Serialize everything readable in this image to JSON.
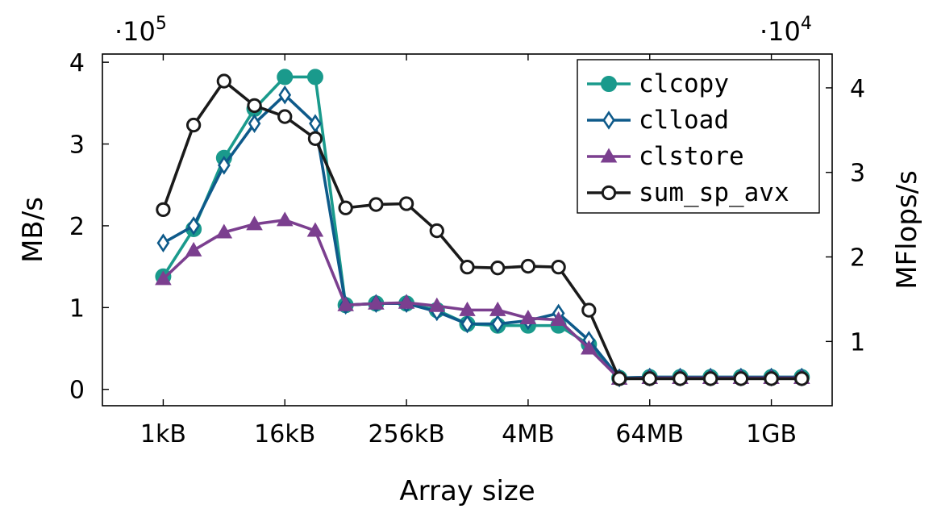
{
  "chart_data": {
    "type": "line",
    "xlabel": "Array size",
    "ylabel": "MB/s",
    "y2label": "MFlops/s",
    "y_scale_label": "·10",
    "y_scale_exp": "5",
    "y2_scale_label": "·10",
    "y2_scale_exp": "4",
    "x_ticks": [
      {
        "x": 10,
        "label": "1kB"
      },
      {
        "x": 14,
        "label": "16kB"
      },
      {
        "x": 18,
        "label": "256kB"
      },
      {
        "x": 22,
        "label": "4MB"
      },
      {
        "x": 26,
        "label": "64MB"
      },
      {
        "x": 30,
        "label": "1GB"
      }
    ],
    "xlim": [
      8,
      32
    ],
    "ylim": [
      -0.2,
      4.1
    ],
    "y_ticks": [
      0,
      1,
      2,
      3,
      4
    ],
    "y2lim": [
      2400,
      44000
    ],
    "y2_ticks": [
      {
        "v": 10000,
        "label": "1"
      },
      {
        "v": 20000,
        "label": "2"
      },
      {
        "v": 30000,
        "label": "3"
      },
      {
        "v": 40000,
        "label": "4"
      }
    ],
    "legend_position": "top-right",
    "series": [
      {
        "name": "clcopy",
        "axis": "left",
        "color": "#1a9a8c",
        "marker": "circle-filled",
        "points": [
          [
            10,
            1.38
          ],
          [
            11,
            1.96
          ],
          [
            12,
            2.83
          ],
          [
            13,
            3.43
          ],
          [
            14,
            3.82
          ],
          [
            15,
            3.82
          ],
          [
            16,
            1.03
          ],
          [
            17,
            1.05
          ],
          [
            18,
            1.05
          ],
          [
            19,
            0.97
          ],
          [
            20,
            0.8
          ],
          [
            21,
            0.78
          ],
          [
            22,
            0.78
          ],
          [
            23,
            0.78
          ],
          [
            24,
            0.55
          ],
          [
            25,
            0.14
          ],
          [
            26,
            0.15
          ],
          [
            27,
            0.15
          ],
          [
            28,
            0.15
          ],
          [
            29,
            0.15
          ],
          [
            30,
            0.15
          ],
          [
            31,
            0.15
          ]
        ]
      },
      {
        "name": "clload",
        "axis": "left",
        "color": "#0e5a8a",
        "marker": "diamond",
        "points": [
          [
            10,
            1.79
          ],
          [
            11,
            2.0
          ],
          [
            12,
            2.74
          ],
          [
            13,
            3.25
          ],
          [
            14,
            3.6
          ],
          [
            15,
            3.25
          ],
          [
            16,
            1.03
          ],
          [
            17,
            1.05
          ],
          [
            18,
            1.05
          ],
          [
            19,
            0.95
          ],
          [
            20,
            0.8
          ],
          [
            21,
            0.8
          ],
          [
            22,
            0.84
          ],
          [
            23,
            0.93
          ],
          [
            24,
            0.6
          ],
          [
            25,
            0.14
          ],
          [
            26,
            0.15
          ],
          [
            27,
            0.15
          ],
          [
            28,
            0.15
          ],
          [
            29,
            0.15
          ],
          [
            30,
            0.15
          ],
          [
            31,
            0.15
          ]
        ]
      },
      {
        "name": "clstore",
        "axis": "left",
        "color": "#7b3f8f",
        "marker": "triangle",
        "points": [
          [
            10,
            1.35
          ],
          [
            11,
            1.7
          ],
          [
            12,
            1.92
          ],
          [
            13,
            2.02
          ],
          [
            14,
            2.07
          ],
          [
            15,
            1.94
          ],
          [
            16,
            1.03
          ],
          [
            17,
            1.05
          ],
          [
            18,
            1.06
          ],
          [
            19,
            1.02
          ],
          [
            20,
            0.97
          ],
          [
            21,
            0.97
          ],
          [
            22,
            0.87
          ],
          [
            23,
            0.85
          ],
          [
            24,
            0.5
          ],
          [
            25,
            0.13
          ],
          [
            26,
            0.14
          ],
          [
            27,
            0.14
          ],
          [
            28,
            0.14
          ],
          [
            29,
            0.14
          ],
          [
            30,
            0.14
          ],
          [
            31,
            0.14
          ]
        ]
      },
      {
        "name": "sum_sp_avx",
        "axis": "right",
        "color": "#1a1a1a",
        "marker": "circle-open",
        "points": [
          [
            10,
            25600
          ],
          [
            11,
            35600
          ],
          [
            12,
            40800
          ],
          [
            13,
            37900
          ],
          [
            14,
            36600
          ],
          [
            15,
            34000
          ],
          [
            16,
            25800
          ],
          [
            17,
            26200
          ],
          [
            18,
            26300
          ],
          [
            19,
            23100
          ],
          [
            20,
            18800
          ],
          [
            21,
            18700
          ],
          [
            22,
            18900
          ],
          [
            23,
            18800
          ],
          [
            24,
            13700
          ],
          [
            25,
            5600
          ],
          [
            26,
            5600
          ],
          [
            27,
            5600
          ],
          [
            28,
            5600
          ],
          [
            29,
            5600
          ],
          [
            30,
            5600
          ],
          [
            31,
            5600
          ]
        ]
      }
    ]
  }
}
